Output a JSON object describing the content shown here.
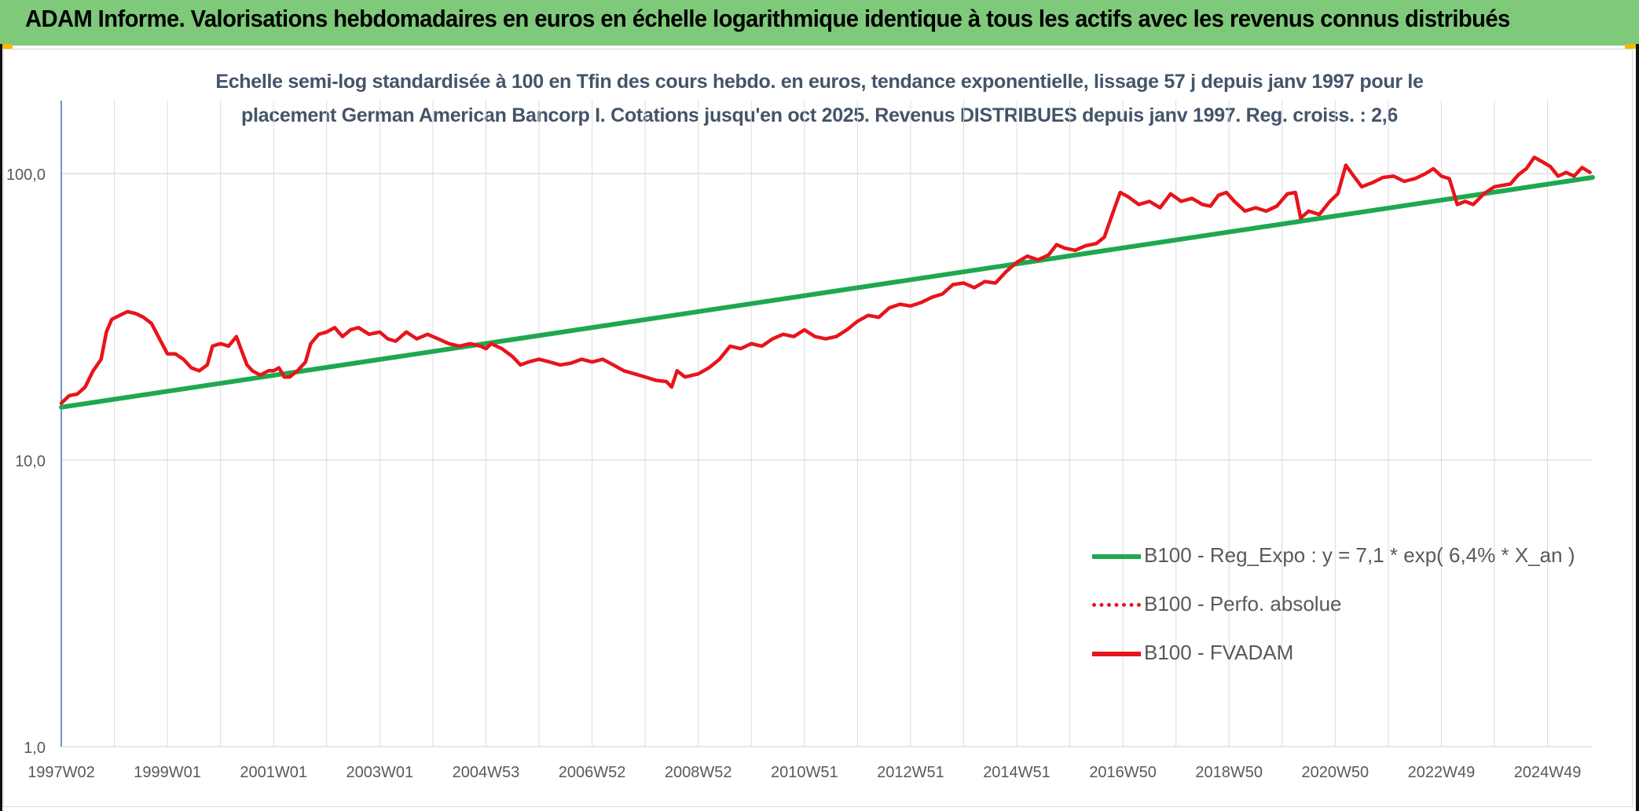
{
  "header": {
    "title": "ADAM Informe. Valorisations hebdomadaires en euros en échelle logarithmique identique à tous les actifs avec les revenus connus distribués"
  },
  "chart_data": {
    "type": "line",
    "title_line1": "Echelle semi-log standardisée à 100 en Tfin des cours hebdo. en euros, tendance exponentielle, lissage 57 j depuis janv 1997 pour le",
    "title_line2": "placement German American Bancorp I. Cotations jusqu'en oct 2025. Revenus DISTRIBUES depuis janv 1997. Reg. croiss. : 2,6",
    "y_scale": "log",
    "ylim": [
      1,
      180
    ],
    "y_ticks": [
      {
        "value": 1,
        "label": "1,0"
      },
      {
        "value": 10,
        "label": "10,0"
      },
      {
        "value": 100,
        "label": "100,0"
      }
    ],
    "xlim": [
      1997.0,
      2025.85
    ],
    "x_ticks": [
      {
        "value": 1997.0,
        "label": "1997W02"
      },
      {
        "value": 1999.0,
        "label": "1999W01"
      },
      {
        "value": 2001.0,
        "label": "2001W01"
      },
      {
        "value": 2003.0,
        "label": "2003W01"
      },
      {
        "value": 2005.0,
        "label": "2004W53"
      },
      {
        "value": 2007.0,
        "label": "2006W52"
      },
      {
        "value": 2009.0,
        "label": "2008W52"
      },
      {
        "value": 2011.0,
        "label": "2010W51"
      },
      {
        "value": 2013.0,
        "label": "2012W51"
      },
      {
        "value": 2015.0,
        "label": "2014W51"
      },
      {
        "value": 2017.0,
        "label": "2016W50"
      },
      {
        "value": 2019.0,
        "label": "2018W50"
      },
      {
        "value": 2021.0,
        "label": "2020W50"
      },
      {
        "value": 2023.0,
        "label": "2022W49"
      },
      {
        "value": 2025.0,
        "label": "2024W49"
      }
    ],
    "grid_years": [
      1997,
      1998,
      1999,
      2000,
      2001,
      2002,
      2003,
      2004,
      2005,
      2006,
      2007,
      2008,
      2009,
      2010,
      2011,
      2012,
      2013,
      2014,
      2015,
      2016,
      2017,
      2018,
      2019,
      2020,
      2021,
      2022,
      2023,
      2024,
      2025
    ],
    "legend_position": "right",
    "series": [
      {
        "name": "B100 - Reg_Expo : y = 7,1 * exp( 6,4% *  X_an )",
        "color": "#1ea84f",
        "style": "solid",
        "points": [
          [
            1997.0,
            15.3
          ],
          [
            2025.85,
            97.0
          ]
        ]
      },
      {
        "name": "B100 - Perfo. absolue",
        "color": "#e8141b",
        "style": "dotted",
        "points": []
      },
      {
        "name": "B100 - FVADAM",
        "color": "#e8141b",
        "style": "solid",
        "points": [
          [
            1997.0,
            15.8
          ],
          [
            1997.15,
            16.8
          ],
          [
            1997.3,
            17.0
          ],
          [
            1997.45,
            18.0
          ],
          [
            1997.6,
            20.5
          ],
          [
            1997.75,
            22.5
          ],
          [
            1997.85,
            28.0
          ],
          [
            1997.95,
            31.0
          ],
          [
            1998.1,
            32.0
          ],
          [
            1998.25,
            33.0
          ],
          [
            1998.4,
            32.5
          ],
          [
            1998.55,
            31.5
          ],
          [
            1998.7,
            30.0
          ],
          [
            1998.85,
            26.5
          ],
          [
            1999.0,
            23.5
          ],
          [
            1999.15,
            23.5
          ],
          [
            1999.3,
            22.5
          ],
          [
            1999.45,
            21.0
          ],
          [
            1999.6,
            20.5
          ],
          [
            1999.75,
            21.5
          ],
          [
            1999.85,
            25.0
          ],
          [
            2000.0,
            25.5
          ],
          [
            2000.15,
            25.0
          ],
          [
            2000.3,
            27.0
          ],
          [
            2000.4,
            24.0
          ],
          [
            2000.5,
            21.5
          ],
          [
            2000.6,
            20.5
          ],
          [
            2000.75,
            19.8
          ],
          [
            2000.9,
            20.5
          ],
          [
            2001.0,
            20.5
          ],
          [
            2001.1,
            21.0
          ],
          [
            2001.2,
            19.5
          ],
          [
            2001.3,
            19.5
          ],
          [
            2001.45,
            20.5
          ],
          [
            2001.6,
            22.0
          ],
          [
            2001.7,
            25.5
          ],
          [
            2001.85,
            27.5
          ],
          [
            2002.0,
            28.0
          ],
          [
            2002.15,
            29.0
          ],
          [
            2002.3,
            27.0
          ],
          [
            2002.45,
            28.5
          ],
          [
            2002.6,
            29.0
          ],
          [
            2002.8,
            27.5
          ],
          [
            2003.0,
            28.0
          ],
          [
            2003.15,
            26.5
          ],
          [
            2003.3,
            26.0
          ],
          [
            2003.5,
            28.0
          ],
          [
            2003.7,
            26.5
          ],
          [
            2003.9,
            27.5
          ],
          [
            2004.1,
            26.5
          ],
          [
            2004.3,
            25.5
          ],
          [
            2004.5,
            25.0
          ],
          [
            2004.7,
            25.5
          ],
          [
            2004.9,
            25.0
          ],
          [
            2005.0,
            24.5
          ],
          [
            2005.1,
            25.5
          ],
          [
            2005.3,
            24.5
          ],
          [
            2005.5,
            23.0
          ],
          [
            2005.65,
            21.5
          ],
          [
            2005.8,
            22.0
          ],
          [
            2006.0,
            22.5
          ],
          [
            2006.2,
            22.0
          ],
          [
            2006.4,
            21.5
          ],
          [
            2006.6,
            21.8
          ],
          [
            2006.8,
            22.5
          ],
          [
            2007.0,
            22.0
          ],
          [
            2007.2,
            22.5
          ],
          [
            2007.4,
            21.5
          ],
          [
            2007.6,
            20.5
          ],
          [
            2007.8,
            20.0
          ],
          [
            2008.0,
            19.5
          ],
          [
            2008.2,
            19.0
          ],
          [
            2008.4,
            18.8
          ],
          [
            2008.5,
            18.0
          ],
          [
            2008.6,
            20.5
          ],
          [
            2008.75,
            19.5
          ],
          [
            2009.0,
            20.0
          ],
          [
            2009.2,
            21.0
          ],
          [
            2009.4,
            22.5
          ],
          [
            2009.6,
            25.0
          ],
          [
            2009.8,
            24.5
          ],
          [
            2010.0,
            25.5
          ],
          [
            2010.2,
            25.0
          ],
          [
            2010.4,
            26.5
          ],
          [
            2010.6,
            27.5
          ],
          [
            2010.8,
            27.0
          ],
          [
            2011.0,
            28.5
          ],
          [
            2011.2,
            27.0
          ],
          [
            2011.4,
            26.5
          ],
          [
            2011.6,
            27.0
          ],
          [
            2011.8,
            28.5
          ],
          [
            2012.0,
            30.5
          ],
          [
            2012.2,
            32.0
          ],
          [
            2012.4,
            31.5
          ],
          [
            2012.6,
            34.0
          ],
          [
            2012.8,
            35.0
          ],
          [
            2013.0,
            34.5
          ],
          [
            2013.2,
            35.5
          ],
          [
            2013.4,
            37.0
          ],
          [
            2013.6,
            38.0
          ],
          [
            2013.8,
            41.0
          ],
          [
            2014.0,
            41.5
          ],
          [
            2014.2,
            40.0
          ],
          [
            2014.4,
            42.0
          ],
          [
            2014.6,
            41.5
          ],
          [
            2014.8,
            45.5
          ],
          [
            2015.0,
            49.0
          ],
          [
            2015.2,
            51.5
          ],
          [
            2015.4,
            50.0
          ],
          [
            2015.6,
            52.0
          ],
          [
            2015.75,
            56.5
          ],
          [
            2015.9,
            55.0
          ],
          [
            2016.1,
            54.0
          ],
          [
            2016.3,
            56.0
          ],
          [
            2016.5,
            57.0
          ],
          [
            2016.65,
            60.0
          ],
          [
            2016.8,
            72.0
          ],
          [
            2016.95,
            86.0
          ],
          [
            2017.1,
            83.0
          ],
          [
            2017.3,
            78.0
          ],
          [
            2017.5,
            80.0
          ],
          [
            2017.7,
            76.0
          ],
          [
            2017.9,
            85.0
          ],
          [
            2018.1,
            80.0
          ],
          [
            2018.3,
            82.0
          ],
          [
            2018.5,
            78.0
          ],
          [
            2018.65,
            77.0
          ],
          [
            2018.8,
            84.0
          ],
          [
            2018.95,
            86.0
          ],
          [
            2019.1,
            80.0
          ],
          [
            2019.3,
            74.0
          ],
          [
            2019.5,
            76.0
          ],
          [
            2019.7,
            74.0
          ],
          [
            2019.9,
            77.0
          ],
          [
            2020.1,
            85.0
          ],
          [
            2020.25,
            86.0
          ],
          [
            2020.35,
            70.0
          ],
          [
            2020.5,
            74.0
          ],
          [
            2020.7,
            72.0
          ],
          [
            2020.9,
            80.0
          ],
          [
            2021.05,
            85.0
          ],
          [
            2021.2,
            107.0
          ],
          [
            2021.35,
            98.0
          ],
          [
            2021.5,
            90.0
          ],
          [
            2021.7,
            93.0
          ],
          [
            2021.9,
            97.0
          ],
          [
            2022.1,
            98.0
          ],
          [
            2022.3,
            94.0
          ],
          [
            2022.5,
            96.0
          ],
          [
            2022.7,
            100.0
          ],
          [
            2022.85,
            104.0
          ],
          [
            2023.0,
            98.0
          ],
          [
            2023.15,
            96.0
          ],
          [
            2023.3,
            78.0
          ],
          [
            2023.45,
            80.0
          ],
          [
            2023.6,
            78.0
          ],
          [
            2023.8,
            85.0
          ],
          [
            2024.0,
            90.0
          ],
          [
            2024.15,
            91.0
          ],
          [
            2024.3,
            92.0
          ],
          [
            2024.45,
            99.0
          ],
          [
            2024.6,
            104.0
          ],
          [
            2024.75,
            114.0
          ],
          [
            2024.9,
            110.0
          ],
          [
            2025.05,
            106.0
          ],
          [
            2025.2,
            98.0
          ],
          [
            2025.35,
            101.0
          ],
          [
            2025.5,
            98.0
          ],
          [
            2025.65,
            105.0
          ],
          [
            2025.8,
            101.0
          ]
        ]
      }
    ]
  }
}
